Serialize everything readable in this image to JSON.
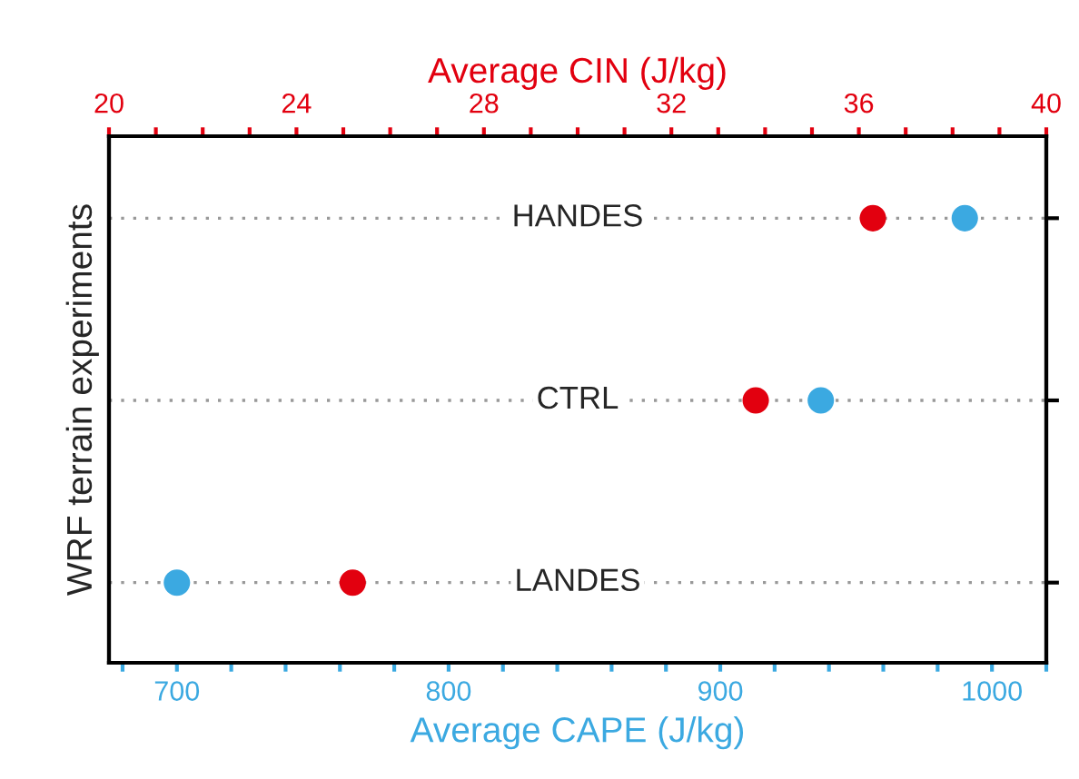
{
  "chart_data": {
    "type": "scatter",
    "orientation": "horizontal",
    "ylabel": "WRF terrain experiments",
    "xlabel": "Average CAPE (J/kg)",
    "x2label": "Average CIN (J/kg)",
    "categories": [
      "HANDES",
      "CTRL",
      "LANDES"
    ],
    "series": [
      {
        "color": "#3ba9e1",
        "values": [
          990,
          937,
          700
        ]
      },
      {
        "color": "#e2000f",
        "axis": "x2",
        "values": [
          36.3,
          33.8,
          25.2
        ]
      }
    ],
    "xlim": [
      675,
      1020
    ],
    "xticks": [
      {
        "value": 680,
        "label": null
      },
      700,
      {
        "value": 720,
        "label": null
      },
      {
        "value": 740,
        "label": null
      },
      {
        "value": 760,
        "label": null
      },
      {
        "value": 780,
        "label": null
      },
      800,
      {
        "value": 820,
        "label": null
      },
      {
        "value": 840,
        "label": null
      },
      {
        "value": 860,
        "label": null
      },
      {
        "value": 880,
        "label": null
      },
      900,
      {
        "value": 920,
        "label": null
      },
      {
        "value": 940,
        "label": null
      },
      {
        "value": 960,
        "label": null
      },
      {
        "value": 980,
        "label": null
      },
      1000,
      {
        "value": 1020,
        "label": null
      }
    ],
    "x2lim": [
      20,
      40
    ],
    "x2ticks": [
      20,
      {
        "value": 21,
        "label": null
      },
      {
        "value": 22,
        "label": null
      },
      {
        "value": 23,
        "label": null
      },
      24,
      {
        "value": 25,
        "label": null
      },
      {
        "value": 26,
        "label": null
      },
      {
        "value": 27,
        "label": null
      },
      28,
      {
        "value": 29,
        "label": null
      },
      {
        "value": 30,
        "label": null
      },
      {
        "value": 31,
        "label": null
      },
      32,
      {
        "value": 33,
        "label": null
      },
      {
        "value": 34,
        "label": null
      },
      {
        "value": 35,
        "label": null
      },
      36,
      {
        "value": 37,
        "label": null
      },
      {
        "value": 38,
        "label": null
      },
      {
        "value": 39,
        "label": null
      },
      40
    ],
    "grid": "y",
    "marker": "circle"
  }
}
